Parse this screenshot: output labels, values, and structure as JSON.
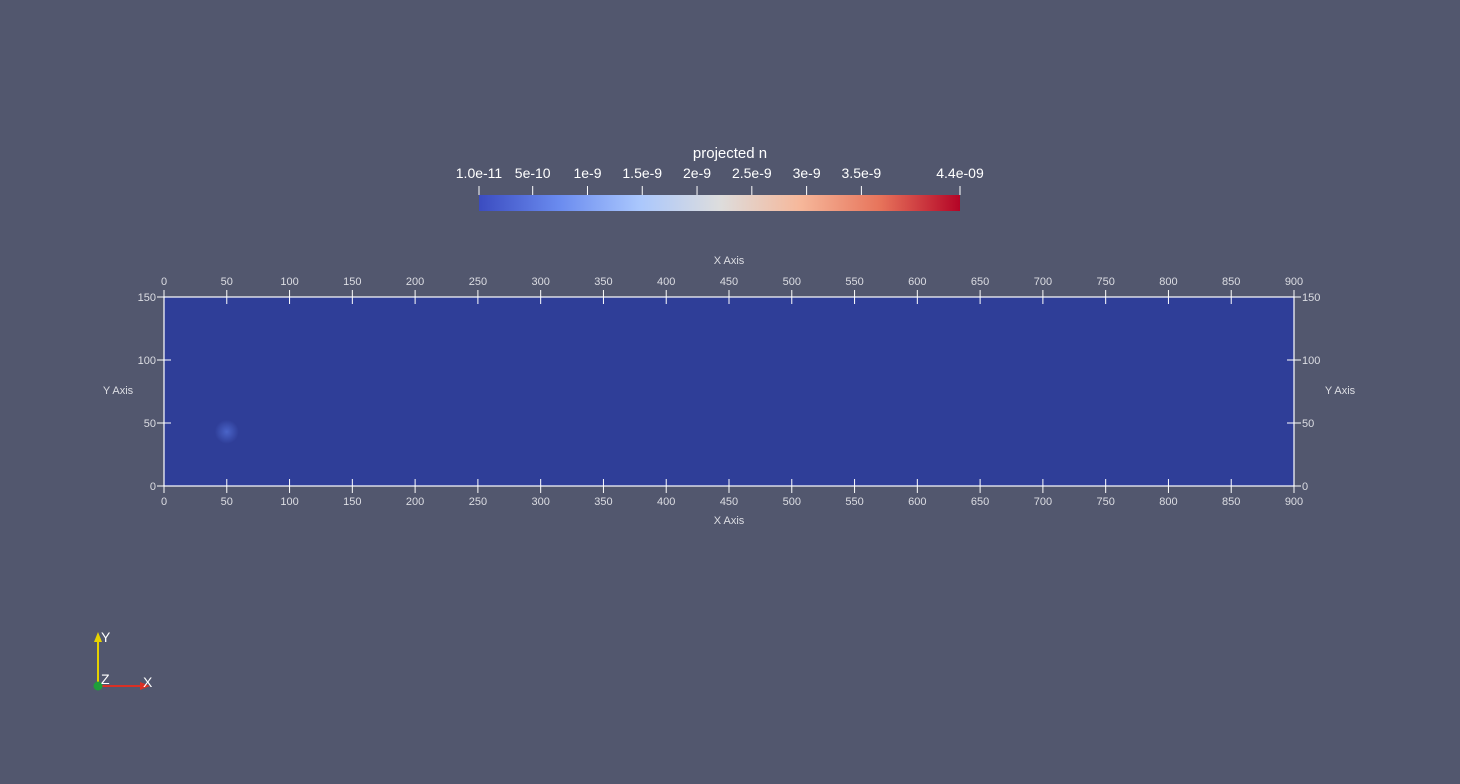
{
  "colorbar": {
    "title": "projected n",
    "labels": [
      {
        "text": "1.0e-11",
        "value": 1e-11
      },
      {
        "text": "5e-10",
        "value": 5e-10
      },
      {
        "text": "1e-9",
        "value": 1e-09
      },
      {
        "text": "1.5e-9",
        "value": 1.5e-09
      },
      {
        "text": "2e-9",
        "value": 2e-09
      },
      {
        "text": "2.5e-9",
        "value": 2.5e-09
      },
      {
        "text": "3e-9",
        "value": 3e-09
      },
      {
        "text": "3.5e-9",
        "value": 3.5e-09
      },
      {
        "text": "4.4e-09",
        "value": 4.4e-09
      }
    ],
    "range": [
      1e-11,
      4.4e-09
    ],
    "colormap": [
      "#3b4cc0",
      "#6a8bef",
      "#aac7fd",
      "#dddddd",
      "#f6b89b",
      "#e7745b",
      "#b40426"
    ]
  },
  "axes": {
    "x_title": "X Axis",
    "y_title": "Y Axis",
    "x_ticks": [
      0,
      50,
      100,
      150,
      200,
      250,
      300,
      350,
      400,
      450,
      500,
      550,
      600,
      650,
      700,
      750,
      800,
      850,
      900
    ],
    "y_ticks": [
      0,
      50,
      100,
      150
    ],
    "x_range": [
      0,
      900
    ],
    "y_range": [
      0,
      150
    ],
    "grid_color": "#ffffff",
    "label_color": "#dcdde3"
  },
  "field": {
    "fill_color": "#2f3e98",
    "blob": {
      "x": 50,
      "y": 43,
      "color": "#4a64c8"
    }
  },
  "orientation": {
    "x_label": "X",
    "y_label": "Y",
    "z_label": "Z",
    "x_color": "#d93025",
    "y_color": "#e6d200",
    "z_color": "#1e9e3a"
  },
  "background_color": "#52576e"
}
